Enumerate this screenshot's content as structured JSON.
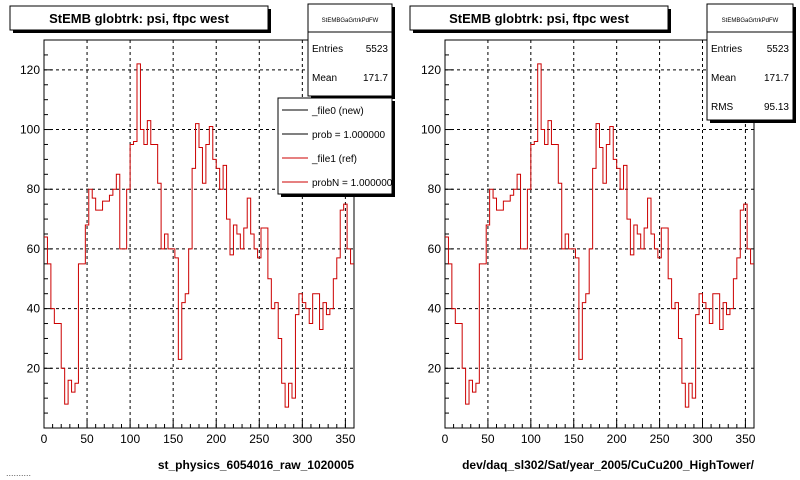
{
  "footer_timestamp": "..........",
  "panels": [
    {
      "title": "StEMB globtrk: psi, ftpc west",
      "stats": {
        "name": "StEMBGaGrtrkPdFW",
        "rows": [
          {
            "label": "Entries",
            "value": "5523"
          },
          {
            "label": "Mean",
            "value": "171.7"
          }
        ]
      },
      "legend": [
        {
          "label": "_file0 (new)",
          "color": "#000000"
        },
        {
          "label": "prob = 1.000000",
          "color": "#000000"
        },
        {
          "label": "_file1 (ref)",
          "color": "#cc0000"
        },
        {
          "label": "probN = 1.000000",
          "color": "#cc0000"
        }
      ],
      "xlabel": "st_physics_6054016_raw_1020005"
    },
    {
      "title": "StEMB globtrk: psi, ftpc west",
      "stats": {
        "name": "StEMBGaGrtrkPdFW",
        "rows": [
          {
            "label": "Entries",
            "value": "5523"
          },
          {
            "label": "Mean",
            "value": "171.7"
          },
          {
            "label": "RMS",
            "value": "95.13"
          }
        ]
      },
      "legend": [],
      "xlabel": "dev/daq_sl302/Sat/year_2005/CuCu200_HighTower/"
    }
  ],
  "chart_data": [
    {
      "type": "line",
      "title": "StEMB globtrk: psi, ftpc west",
      "xlabel": "st_physics_6054016_raw_1020005",
      "ylabel": "",
      "xlim": [
        0,
        360
      ],
      "ylim": [
        0,
        130
      ],
      "xticks": [
        0,
        50,
        100,
        150,
        200,
        250,
        300,
        350
      ],
      "yticks": [
        20,
        40,
        60,
        80,
        100,
        120
      ],
      "grid": true,
      "legend_position": "top-right",
      "series": [
        {
          "name": "_file1 (ref)",
          "color": "#cc0000",
          "x": [
            0,
            4,
            8,
            12,
            16,
            20,
            24,
            28,
            32,
            36,
            40,
            44,
            48,
            52,
            56,
            60,
            64,
            68,
            72,
            76,
            80,
            84,
            88,
            92,
            96,
            100,
            104,
            108,
            112,
            116,
            120,
            124,
            128,
            132,
            136,
            140,
            144,
            148,
            152,
            156,
            160,
            164,
            168,
            172,
            176,
            180,
            184,
            188,
            192,
            196,
            200,
            204,
            208,
            212,
            216,
            220,
            224,
            228,
            232,
            236,
            240,
            244,
            248,
            252,
            256,
            260,
            264,
            268,
            272,
            276,
            280,
            284,
            288,
            292,
            296,
            300,
            304,
            308,
            312,
            316,
            320,
            324,
            328,
            332,
            336,
            340,
            344,
            348,
            352,
            356
          ],
          "values": [
            64,
            55,
            40,
            35,
            35,
            20,
            8,
            16,
            12,
            15,
            55,
            55,
            68,
            80,
            77,
            73,
            73,
            76,
            76,
            78,
            80,
            85,
            60,
            60,
            80,
            95,
            96,
            122,
            100,
            95,
            103,
            95,
            95,
            82,
            60,
            65,
            60,
            60,
            57,
            23,
            42,
            45,
            60,
            87,
            102,
            94,
            82,
            95,
            101,
            90,
            87,
            80,
            88,
            70,
            58,
            68,
            65,
            60,
            67,
            77,
            65,
            60,
            57,
            67,
            67,
            50,
            40,
            42,
            30,
            15,
            7,
            15,
            10,
            38,
            45,
            42,
            40,
            35,
            45,
            45,
            33,
            42,
            38,
            40,
            50,
            57,
            73,
            75,
            60,
            55
          ]
        }
      ]
    },
    {
      "type": "line",
      "title": "StEMB globtrk: psi, ftpc west",
      "xlabel": "dev/daq_sl302/Sat/year_2005/CuCu200_HighTower/",
      "ylabel": "",
      "xlim": [
        0,
        360
      ],
      "ylim": [
        0,
        130
      ],
      "xticks": [
        0,
        50,
        100,
        150,
        200,
        250,
        300,
        350
      ],
      "yticks": [
        20,
        40,
        60,
        80,
        100,
        120
      ],
      "grid": true,
      "series": [
        {
          "color": "#cc0000",
          "x": [
            0,
            4,
            8,
            12,
            16,
            20,
            24,
            28,
            32,
            36,
            40,
            44,
            48,
            52,
            56,
            60,
            64,
            68,
            72,
            76,
            80,
            84,
            88,
            92,
            96,
            100,
            104,
            108,
            112,
            116,
            120,
            124,
            128,
            132,
            136,
            140,
            144,
            148,
            152,
            156,
            160,
            164,
            168,
            172,
            176,
            180,
            184,
            188,
            192,
            196,
            200,
            204,
            208,
            212,
            216,
            220,
            224,
            228,
            232,
            236,
            240,
            244,
            248,
            252,
            256,
            260,
            264,
            268,
            272,
            276,
            280,
            284,
            288,
            292,
            296,
            300,
            304,
            308,
            312,
            316,
            320,
            324,
            328,
            332,
            336,
            340,
            344,
            348,
            352,
            356
          ],
          "values": [
            64,
            55,
            40,
            35,
            35,
            20,
            8,
            16,
            12,
            15,
            55,
            55,
            68,
            80,
            77,
            73,
            73,
            76,
            76,
            78,
            80,
            85,
            60,
            60,
            80,
            95,
            96,
            122,
            100,
            95,
            103,
            95,
            95,
            82,
            60,
            65,
            60,
            60,
            57,
            23,
            42,
            45,
            60,
            87,
            102,
            94,
            82,
            95,
            101,
            90,
            87,
            80,
            88,
            70,
            58,
            68,
            65,
            60,
            67,
            77,
            65,
            60,
            57,
            67,
            67,
            50,
            40,
            42,
            30,
            15,
            7,
            15,
            10,
            38,
            45,
            42,
            40,
            35,
            45,
            45,
            33,
            42,
            38,
            40,
            50,
            57,
            73,
            75,
            60,
            55
          ]
        }
      ]
    }
  ]
}
